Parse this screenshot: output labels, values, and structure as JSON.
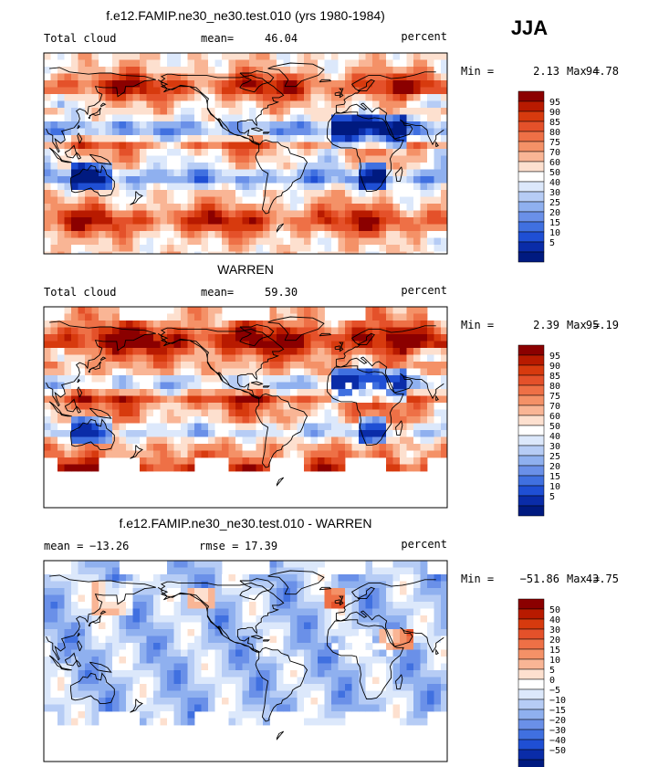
{
  "season": "JJA",
  "chart_data": [
    {
      "type": "heatmap",
      "title": "f.e12.FAMIP.ne30_ne30.test.010 (yrs 1980-1984)",
      "left_label": "Total cloud",
      "stat1_label": "mean=",
      "stat1_value": "46.04",
      "stat2_label": "",
      "stat2_value": "",
      "units": "percent",
      "min_label": "Min =",
      "min": "2.13",
      "max_label": "Max =",
      "max": "94.78",
      "range": [
        0,
        100
      ],
      "levels": [
        "95",
        "90",
        "85",
        "80",
        "75",
        "70",
        "60",
        "50",
        "40",
        "30",
        "25",
        "20",
        "15",
        "10",
        "5"
      ],
      "colors": [
        "#8b0000",
        "#b81a00",
        "#d73a0e",
        "#e4512a",
        "#ee7046",
        "#f49167",
        "#f9b595",
        "#fde0cf",
        "#ffffff",
        "#dce8fb",
        "#b6ccf5",
        "#8fb0ef",
        "#6a90e8",
        "#4070e0",
        "#1f4fd4",
        "#0a2ca8",
        "#001a80"
      ],
      "mask_missing": false
    },
    {
      "type": "heatmap",
      "title": "WARREN",
      "left_label": "Total cloud",
      "stat1_label": "mean=",
      "stat1_value": "59.30",
      "stat2_label": "",
      "stat2_value": "",
      "units": "percent",
      "min_label": "Min =",
      "min": "2.39",
      "max_label": "Max =",
      "max": "95.19",
      "range": [
        0,
        100
      ],
      "levels": [
        "95",
        "90",
        "85",
        "80",
        "75",
        "70",
        "60",
        "50",
        "40",
        "30",
        "25",
        "20",
        "15",
        "10",
        "5"
      ],
      "colors": [
        "#8b0000",
        "#b81a00",
        "#d73a0e",
        "#e4512a",
        "#ee7046",
        "#f49167",
        "#f9b595",
        "#fde0cf",
        "#ffffff",
        "#dce8fb",
        "#b6ccf5",
        "#8fb0ef",
        "#6a90e8",
        "#4070e0",
        "#1f4fd4",
        "#0a2ca8",
        "#001a80"
      ],
      "mask_missing": true
    },
    {
      "type": "heatmap",
      "title": "f.e12.FAMIP.ne30_ne30.test.010 - WARREN",
      "left_label": "",
      "stat1_label": "mean =",
      "stat1_value": "−13.26",
      "stat2_label": "rmse =",
      "stat2_value": "17.39",
      "units": "percent",
      "min_label": "Min =",
      "min": "−51.86",
      "max_label": "Max =",
      "max": "43.75",
      "range": [
        -55,
        55
      ],
      "levels": [
        "50",
        "40",
        "30",
        "20",
        "15",
        "10",
        "5",
        "0",
        "−5",
        "−10",
        "−15",
        "−20",
        "−30",
        "−40",
        "−50"
      ],
      "colors": [
        "#8b0000",
        "#b81a00",
        "#d73a0e",
        "#e4512a",
        "#ee7046",
        "#f49167",
        "#f9b595",
        "#fde0cf",
        "#ffffff",
        "#dce8fb",
        "#b6ccf5",
        "#8fb0ef",
        "#6a90e8",
        "#4070e0",
        "#1f4fd4",
        "#0a2ca8",
        "#001a80"
      ],
      "mask_missing": true
    }
  ]
}
